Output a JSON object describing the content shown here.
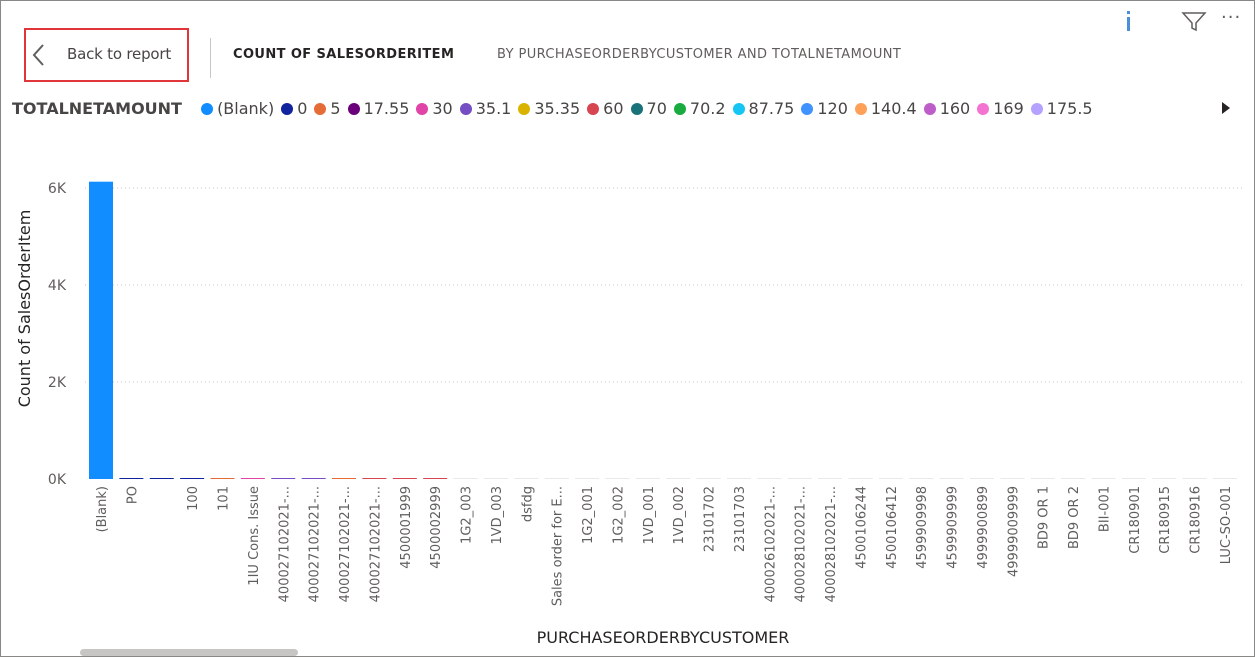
{
  "header": {
    "back_label": "Back to report",
    "title_main": "COUNT OF SALESORDERITEM",
    "title_sub": "BY PURCHASEORDERBYCUSTOMER AND TOTALNETAMOUNT"
  },
  "toolbar": {
    "icons": [
      "info-icon",
      "filter-icon",
      "more-options-icon"
    ],
    "more_symbol": "···"
  },
  "legend": {
    "title": "TOTALNETAMOUNT",
    "items": [
      {
        "label": "(Blank)",
        "color": "#118DFF"
      },
      {
        "label": "0",
        "color": "#12239E"
      },
      {
        "label": "5",
        "color": "#E66C37"
      },
      {
        "label": "17.55",
        "color": "#6B007B"
      },
      {
        "label": "30",
        "color": "#E044A7"
      },
      {
        "label": "35.1",
        "color": "#744EC2"
      },
      {
        "label": "35.35",
        "color": "#D9B300"
      },
      {
        "label": "60",
        "color": "#D64550"
      },
      {
        "label": "70",
        "color": "#197278"
      },
      {
        "label": "70.2",
        "color": "#1AAB40"
      },
      {
        "label": "87.75",
        "color": "#15C6F4"
      },
      {
        "label": "120",
        "color": "#4092FF"
      },
      {
        "label": "140.4",
        "color": "#FFA058"
      },
      {
        "label": "160",
        "color": "#BE5DC9"
      },
      {
        "label": "169",
        "color": "#F472D0"
      },
      {
        "label": "175.5",
        "color": "#B5A1FF"
      }
    ]
  },
  "chart_data": {
    "type": "bar",
    "title": "COUNT OF SALESORDERITEM BY PURCHASEORDERBYCUSTOMER AND TOTALNETAMOUNT",
    "xlabel": "PURCHASEORDERBYCUSTOMER",
    "ylabel": "Count of SalesOrderItem",
    "ylim": [
      0,
      6000
    ],
    "yticks": [
      "0K",
      "2K",
      "4K",
      "6K"
    ],
    "ytick_values": [
      0,
      2000,
      4000,
      6000
    ],
    "grid": true,
    "legend_position": "top",
    "categories": [
      "(Blank)",
      "PO",
      "",
      "100",
      "101",
      "1IU Cons. Issue",
      "400027102021-...",
      "400027102021-...",
      "400027102021-...",
      "400027102021-...",
      "4500001999",
      "4500002999",
      "1G2_003",
      "1VD_003",
      "dsfdg",
      "Sales order for E...",
      "1G2_001",
      "1G2_002",
      "1VD_001",
      "1VD_002",
      "23101702",
      "23101703",
      "400026102021-...",
      "400028102021-...",
      "400028102021-...",
      "4500106244",
      "4500106412",
      "4599909998",
      "4599909999",
      "4999900899",
      "49999009999",
      "BD9 OR 1",
      "BD9 OR 2",
      "BII-001",
      "CR180901",
      "CR180915",
      "CR180916",
      "LUC-SO-001"
    ],
    "values": [
      6130,
      12,
      8,
      10,
      10,
      10,
      10,
      10,
      10,
      10,
      10,
      10,
      4,
      4,
      4,
      4,
      4,
      4,
      4,
      4,
      4,
      4,
      4,
      4,
      4,
      4,
      4,
      4,
      4,
      4,
      4,
      4,
      4,
      4,
      4,
      4,
      4,
      4
    ],
    "bar_colors": [
      "#118DFF",
      "#12239E",
      "#12239E",
      "#12239E",
      "#E66C37",
      "#E044A7",
      "#744EC2",
      "#744EC2",
      "#E66C37",
      "#D64550",
      "#D64550",
      "#D64550",
      "#E9E9E9",
      "#E9E9E9",
      "#E9E9E9",
      "#E9E9E9",
      "#E9E9E9",
      "#E9E9E9",
      "#E9E9E9",
      "#E9E9E9",
      "#E9E9E9",
      "#E9E9E9",
      "#E9E9E9",
      "#E9E9E9",
      "#E9E9E9",
      "#E9E9E9",
      "#E9E9E9",
      "#E9E9E9",
      "#E9E9E9",
      "#E9E9E9",
      "#E9E9E9",
      "#E9E9E9",
      "#E9E9E9",
      "#E9E9E9",
      "#E9E9E9",
      "#E9E9E9",
      "#E9E9E9",
      "#E9E9E9"
    ]
  }
}
